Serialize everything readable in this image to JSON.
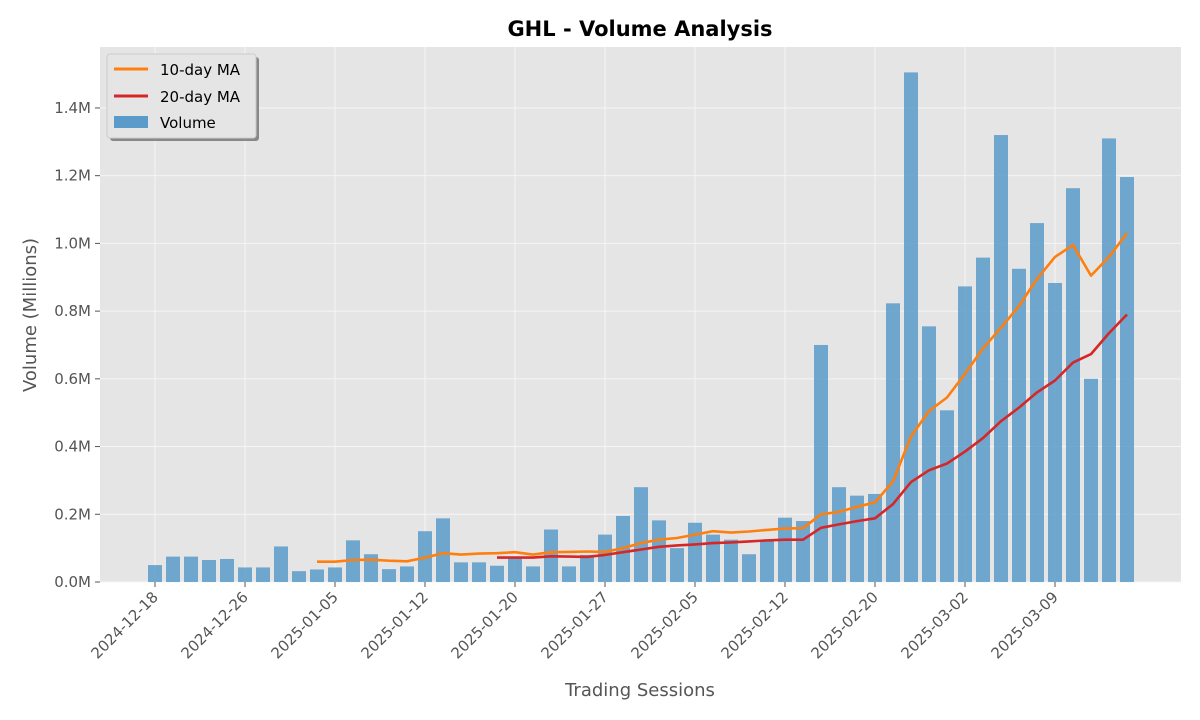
{
  "chart_data": {
    "type": "bar",
    "title": "GHL - Volume Analysis",
    "xlabel": "Trading Sessions",
    "ylabel": "Volume (Millions)",
    "ylim": [
      0,
      1.58
    ],
    "y_ticks": [
      0,
      0.2,
      0.4,
      0.6,
      0.8,
      1.0,
      1.2,
      1.4
    ],
    "y_tick_labels": [
      "0.0M",
      "0.2M",
      "0.4M",
      "0.6M",
      "0.8M",
      "1.0M",
      "1.2M",
      "1.4M"
    ],
    "x_ticks": [
      {
        "index": 0,
        "label": "2024-12-18"
      },
      {
        "index": 5,
        "label": "2024-12-26"
      },
      {
        "index": 10,
        "label": "2025-01-05"
      },
      {
        "index": 15,
        "label": "2025-01-12"
      },
      {
        "index": 20,
        "label": "2025-01-20"
      },
      {
        "index": 25,
        "label": "2025-01-27"
      },
      {
        "index": 30,
        "label": "2025-02-05"
      },
      {
        "index": 35,
        "label": "2025-02-12"
      },
      {
        "index": 40,
        "label": "2025-02-20"
      },
      {
        "index": 45,
        "label": "2025-03-02"
      },
      {
        "index": 50,
        "label": "2025-03-09"
      }
    ],
    "grid": true,
    "legend_position": "top-left",
    "colors": {
      "volume": "#5b9bc9",
      "ma10": "#ff7f0e",
      "ma20": "#d62728",
      "plot_bg": "#e5e5e5",
      "grid": "#f5f5f5"
    },
    "series": [
      {
        "name": "Volume",
        "kind": "bar",
        "values": [
          0.05,
          0.075,
          0.075,
          0.065,
          0.068,
          0.043,
          0.043,
          0.105,
          0.032,
          0.037,
          0.043,
          0.123,
          0.082,
          0.038,
          0.046,
          0.15,
          0.188,
          0.058,
          0.058,
          0.048,
          0.075,
          0.046,
          0.155,
          0.046,
          0.08,
          0.14,
          0.195,
          0.28,
          0.182,
          0.1,
          0.175,
          0.14,
          0.125,
          0.082,
          0.12,
          0.19,
          0.18,
          0.7,
          0.28,
          0.255,
          0.26,
          0.823,
          1.505,
          0.755,
          0.507,
          0.873,
          0.958,
          1.32,
          0.925,
          1.06,
          0.883,
          1.163,
          0.6,
          1.31,
          1.196
        ]
      },
      {
        "name": "10-day MA",
        "kind": "line",
        "start_index": 9,
        "values": [
          0.06,
          0.06,
          0.065,
          0.066,
          0.063,
          0.061,
          0.072,
          0.085,
          0.081,
          0.084,
          0.085,
          0.088,
          0.081,
          0.088,
          0.089,
          0.09,
          0.089,
          0.1,
          0.115,
          0.125,
          0.13,
          0.14,
          0.15,
          0.146,
          0.149,
          0.154,
          0.158,
          0.159,
          0.2,
          0.207,
          0.222,
          0.235,
          0.297,
          0.43,
          0.505,
          0.545,
          0.615,
          0.69,
          0.751,
          0.815,
          0.895,
          0.96,
          0.995,
          0.905,
          0.96,
          1.03
        ]
      },
      {
        "name": "20-day MA",
        "kind": "line",
        "start_index": 19,
        "values": [
          0.072,
          0.072,
          0.072,
          0.076,
          0.075,
          0.074,
          0.08,
          0.088,
          0.096,
          0.104,
          0.108,
          0.111,
          0.115,
          0.117,
          0.12,
          0.123,
          0.125,
          0.125,
          0.16,
          0.17,
          0.18,
          0.188,
          0.23,
          0.295,
          0.33,
          0.35,
          0.385,
          0.425,
          0.475,
          0.515,
          0.56,
          0.595,
          0.648,
          0.673,
          0.735,
          0.79
        ]
      }
    ]
  }
}
